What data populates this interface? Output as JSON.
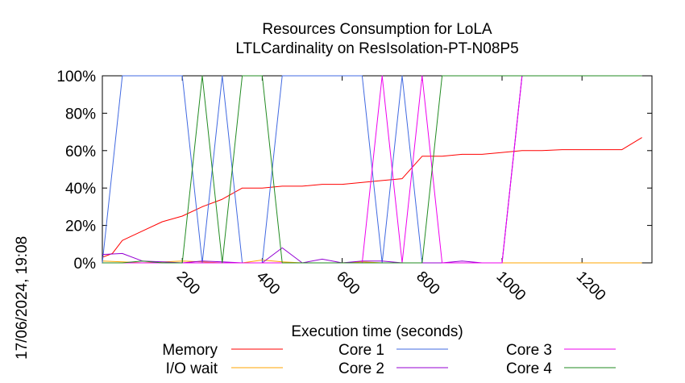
{
  "chart_data": {
    "type": "line",
    "title": [
      "Resources Consumption for LoLA",
      "LTLCardinality on ResIsolation-PT-N08P5"
    ],
    "xlabel": "Execution time (seconds)",
    "ylabel": "",
    "timestamp": "17/06/2024, 19:08",
    "xlim": [
      0,
      1375
    ],
    "ylim": [
      0,
      100
    ],
    "x_ticks": [
      200,
      400,
      600,
      800,
      1000,
      1200
    ],
    "y_ticks": [
      {
        "value": 0,
        "label": "0%"
      },
      {
        "value": 20,
        "label": "20%"
      },
      {
        "value": 40,
        "label": "40%"
      },
      {
        "value": 60,
        "label": "60%"
      },
      {
        "value": 80,
        "label": "80%"
      },
      {
        "value": 100,
        "label": "100%"
      }
    ],
    "grid": false,
    "legend_position": "bottom",
    "series": [
      {
        "name": "Memory",
        "color": "#ff0000",
        "points": [
          [
            0,
            3
          ],
          [
            25,
            5
          ],
          [
            50,
            12
          ],
          [
            100,
            17
          ],
          [
            150,
            22
          ],
          [
            200,
            25
          ],
          [
            250,
            30
          ],
          [
            300,
            34
          ],
          [
            350,
            40
          ],
          [
            400,
            40
          ],
          [
            450,
            41
          ],
          [
            500,
            41
          ],
          [
            550,
            42
          ],
          [
            600,
            42
          ],
          [
            650,
            43
          ],
          [
            700,
            44
          ],
          [
            750,
            45
          ],
          [
            800,
            57
          ],
          [
            850,
            57
          ],
          [
            900,
            58
          ],
          [
            950,
            58
          ],
          [
            1000,
            59
          ],
          [
            1050,
            60
          ],
          [
            1100,
            60
          ],
          [
            1150,
            60.5
          ],
          [
            1200,
            60.5
          ],
          [
            1250,
            60.5
          ],
          [
            1300,
            60.5
          ],
          [
            1350,
            67
          ]
        ]
      },
      {
        "name": "I/O wait",
        "color": "#ffa500",
        "points": [
          [
            0,
            1
          ],
          [
            50,
            0.5
          ],
          [
            100,
            0
          ],
          [
            200,
            1
          ],
          [
            250,
            0.5
          ],
          [
            300,
            0
          ],
          [
            350,
            0
          ],
          [
            400,
            1.5
          ],
          [
            450,
            0.5
          ],
          [
            500,
            0
          ],
          [
            550,
            0
          ],
          [
            600,
            0
          ],
          [
            650,
            0.5
          ],
          [
            700,
            0
          ],
          [
            750,
            0
          ],
          [
            800,
            0
          ],
          [
            900,
            0
          ],
          [
            1000,
            0
          ],
          [
            1100,
            0
          ],
          [
            1200,
            0
          ],
          [
            1300,
            0
          ],
          [
            1350,
            0
          ]
        ]
      },
      {
        "name": "Core 1",
        "color": "#4169e1",
        "points": [
          [
            0,
            0
          ],
          [
            50,
            100
          ],
          [
            100,
            100
          ],
          [
            150,
            100
          ],
          [
            200,
            100
          ],
          [
            250,
            0
          ],
          [
            300,
            100
          ],
          [
            350,
            0
          ],
          [
            400,
            0
          ],
          [
            450,
            100
          ],
          [
            500,
            100
          ],
          [
            550,
            100
          ],
          [
            600,
            100
          ],
          [
            650,
            100
          ],
          [
            700,
            0
          ],
          [
            750,
            100
          ],
          [
            800,
            0
          ],
          [
            850,
            0
          ],
          [
            900,
            0
          ],
          [
            950,
            0
          ],
          [
            1000,
            0
          ],
          [
            1050,
            100
          ],
          [
            1100,
            100
          ],
          [
            1150,
            100
          ],
          [
            1200,
            100
          ],
          [
            1250,
            100
          ],
          [
            1300,
            100
          ],
          [
            1350,
            100
          ]
        ]
      },
      {
        "name": "Core 2",
        "color": "#9400d3",
        "points": [
          [
            0,
            4.5
          ],
          [
            50,
            5
          ],
          [
            100,
            1
          ],
          [
            150,
            0.5
          ],
          [
            200,
            0
          ],
          [
            250,
            1
          ],
          [
            300,
            0.5
          ],
          [
            350,
            0
          ],
          [
            400,
            0
          ],
          [
            450,
            8
          ],
          [
            500,
            0
          ],
          [
            550,
            2
          ],
          [
            600,
            0
          ],
          [
            650,
            1
          ],
          [
            700,
            1
          ],
          [
            750,
            0
          ],
          [
            800,
            0
          ],
          [
            850,
            0
          ],
          [
            900,
            1
          ],
          [
            950,
            0
          ],
          [
            1000,
            0
          ],
          [
            1050,
            100
          ],
          [
            1100,
            100
          ],
          [
            1200,
            100
          ],
          [
            1300,
            100
          ],
          [
            1350,
            100
          ]
        ]
      },
      {
        "name": "Core 3",
        "color": "#ee00ee",
        "points": [
          [
            0,
            0
          ],
          [
            100,
            0
          ],
          [
            200,
            0
          ],
          [
            300,
            0
          ],
          [
            400,
            0
          ],
          [
            500,
            0
          ],
          [
            600,
            0
          ],
          [
            650,
            0
          ],
          [
            700,
            100
          ],
          [
            750,
            0
          ],
          [
            800,
            100
          ],
          [
            850,
            0
          ],
          [
            900,
            0
          ],
          [
            950,
            0
          ],
          [
            1000,
            0
          ],
          [
            1050,
            100
          ],
          [
            1100,
            100
          ],
          [
            1200,
            100
          ],
          [
            1300,
            100
          ],
          [
            1350,
            100
          ]
        ]
      },
      {
        "name": "Core 4",
        "color": "#228b22",
        "points": [
          [
            0,
            0
          ],
          [
            50,
            0
          ],
          [
            100,
            1
          ],
          [
            150,
            0
          ],
          [
            200,
            0
          ],
          [
            250,
            100
          ],
          [
            300,
            0
          ],
          [
            350,
            100
          ],
          [
            400,
            100
          ],
          [
            450,
            0
          ],
          [
            500,
            0
          ],
          [
            550,
            0
          ],
          [
            600,
            0
          ],
          [
            650,
            0
          ],
          [
            700,
            0
          ],
          [
            750,
            0
          ],
          [
            800,
            0
          ],
          [
            850,
            100
          ],
          [
            900,
            100
          ],
          [
            950,
            100
          ],
          [
            1000,
            100
          ],
          [
            1050,
            100
          ],
          [
            1100,
            100
          ],
          [
            1150,
            100
          ],
          [
            1200,
            100
          ],
          [
            1250,
            100
          ],
          [
            1300,
            100
          ],
          [
            1350,
            100
          ]
        ]
      }
    ]
  }
}
